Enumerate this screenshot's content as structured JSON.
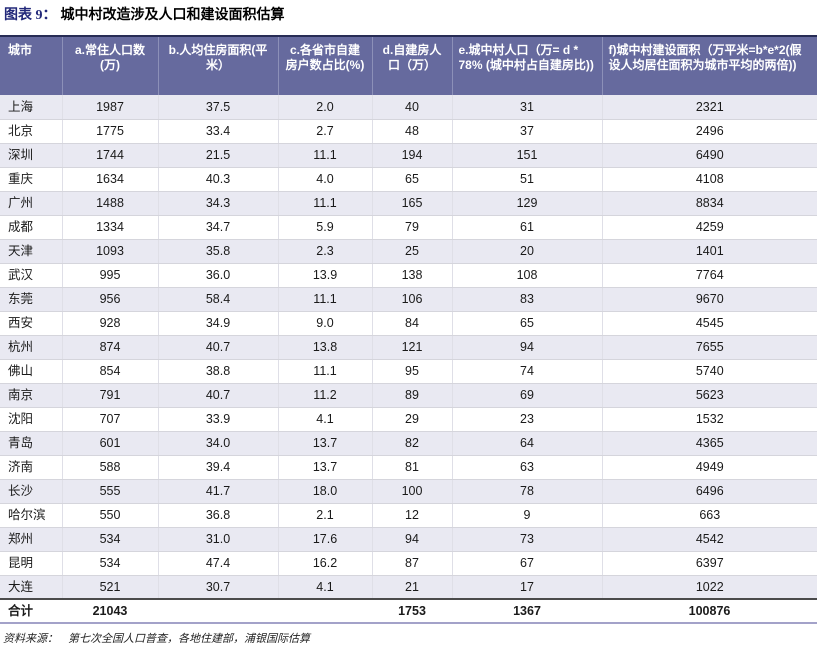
{
  "title": {
    "prefix": "图表 9：",
    "text": "城中村改造涉及人口和建设面积估算"
  },
  "chart_data": {
    "type": "table",
    "title": "图表 9：城中村改造涉及人口和建设面积估算",
    "columns": [
      "城市",
      "a.常住人口数(万)",
      "b.人均住房面积(平米）",
      "c.各省市自建房户数占比(%)",
      "d.自建房人口（万）",
      "e.城中村人口（万= d * 78% (城中村占自建房比))",
      "f)城中村建设面积（万平米=b*e*2(假设人均居住面积为城市平均的两倍))"
    ],
    "column_keys": [
      "city",
      "a",
      "b",
      "c",
      "d",
      "e",
      "f"
    ],
    "rows": [
      [
        "上海",
        "1987",
        "37.5",
        "2.0",
        "40",
        "31",
        "2321"
      ],
      [
        "北京",
        "1775",
        "33.4",
        "2.7",
        "48",
        "37",
        "2496"
      ],
      [
        "深圳",
        "1744",
        "21.5",
        "11.1",
        "194",
        "151",
        "6490"
      ],
      [
        "重庆",
        "1634",
        "40.3",
        "4.0",
        "65",
        "51",
        "4108"
      ],
      [
        "广州",
        "1488",
        "34.3",
        "11.1",
        "165",
        "129",
        "8834"
      ],
      [
        "成都",
        "1334",
        "34.7",
        "5.9",
        "79",
        "61",
        "4259"
      ],
      [
        "天津",
        "1093",
        "35.8",
        "2.3",
        "25",
        "20",
        "1401"
      ],
      [
        "武汉",
        "995",
        "36.0",
        "13.9",
        "138",
        "108",
        "7764"
      ],
      [
        "东莞",
        "956",
        "58.4",
        "11.1",
        "106",
        "83",
        "9670"
      ],
      [
        "西安",
        "928",
        "34.9",
        "9.0",
        "84",
        "65",
        "4545"
      ],
      [
        "杭州",
        "874",
        "40.7",
        "13.8",
        "121",
        "94",
        "7655"
      ],
      [
        "佛山",
        "854",
        "38.8",
        "11.1",
        "95",
        "74",
        "5740"
      ],
      [
        "南京",
        "791",
        "40.7",
        "11.2",
        "89",
        "69",
        "5623"
      ],
      [
        "沈阳",
        "707",
        "33.9",
        "4.1",
        "29",
        "23",
        "1532"
      ],
      [
        "青岛",
        "601",
        "34.0",
        "13.7",
        "82",
        "64",
        "4365"
      ],
      [
        "济南",
        "588",
        "39.4",
        "13.7",
        "81",
        "63",
        "4949"
      ],
      [
        "长沙",
        "555",
        "41.7",
        "18.0",
        "100",
        "78",
        "6496"
      ],
      [
        "哈尔滨",
        "550",
        "36.8",
        "2.1",
        "12",
        "9",
        "663"
      ],
      [
        "郑州",
        "534",
        "31.0",
        "17.6",
        "94",
        "73",
        "4542"
      ],
      [
        "昆明",
        "534",
        "47.4",
        "16.2",
        "87",
        "67",
        "6397"
      ],
      [
        "大连",
        "521",
        "30.7",
        "4.1",
        "21",
        "17",
        "1022"
      ]
    ],
    "total_row": [
      "合计",
      "21043",
      "",
      "",
      "1753",
      "1367",
      "100876"
    ],
    "layout_hints": {
      "striped": true,
      "stripe_rows": "odd",
      "header_align": "first and last two columns left, others center",
      "body_align": "city left, numbers center"
    }
  },
  "source": {
    "label": "资料来源：",
    "text": "第七次全国人口普查，各地住建部，浦银国际估算"
  },
  "colors": {
    "header_bg": "#666A9E",
    "header_text": "#FFFFFF",
    "header_divider": "#8C90B8",
    "row_alt_bg": "#E9E9F2",
    "row_border": "#D5D5DC",
    "cell_divider": "#DFDFE7",
    "table_top_border": "#272C55",
    "total_top_border": "#4B4B4B",
    "bottom_rule": "#A3A2C9",
    "title_prefix_color": "#23297A"
  }
}
